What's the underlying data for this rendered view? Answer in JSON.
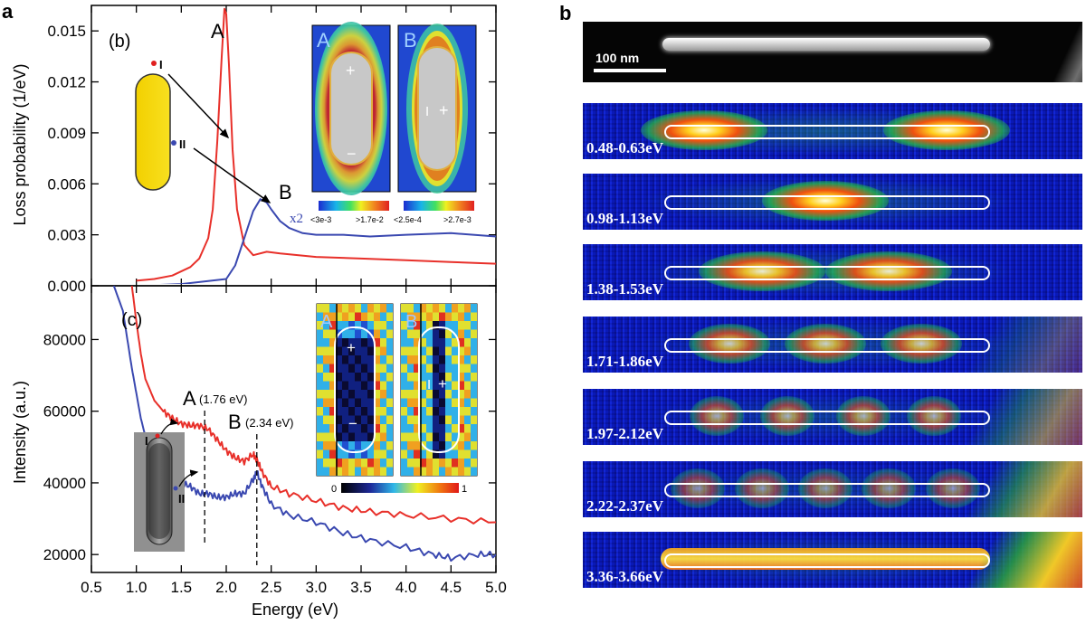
{
  "panel_labels": {
    "a": "a",
    "b": "b"
  },
  "chart_data": [
    {
      "type": "line",
      "subpanel": "(b)",
      "ylabel": "Loss probability (1/eV)",
      "xlim": [
        0.5,
        5.0
      ],
      "ylim": [
        0.0,
        0.0165
      ],
      "yticks": [
        "0.000",
        "0.003",
        "0.006",
        "0.009",
        "0.012",
        "0.015"
      ],
      "ytick_values": [
        0.0,
        0.003,
        0.006,
        0.009,
        0.012,
        0.015
      ],
      "series": [
        {
          "color": "#e8302a",
          "x": [
            1.0,
            1.2,
            1.4,
            1.6,
            1.7,
            1.8,
            1.85,
            1.9,
            1.95,
            1.98,
            2.0,
            2.03,
            2.07,
            2.12,
            2.2,
            2.3,
            2.45,
            2.6,
            3.0,
            3.5,
            4.0,
            4.5,
            5.0
          ],
          "y": [
            0.0003,
            0.0004,
            0.0006,
            0.0011,
            0.0016,
            0.0028,
            0.0045,
            0.0085,
            0.0135,
            0.0163,
            0.016,
            0.013,
            0.008,
            0.0045,
            0.0024,
            0.0018,
            0.002,
            0.0019,
            0.0017,
            0.0016,
            0.0015,
            0.0014,
            0.0013
          ]
        },
        {
          "color": "#3a48b0",
          "x": [
            1.0,
            1.5,
            2.0,
            2.1,
            2.2,
            2.3,
            2.38,
            2.45,
            2.5,
            2.6,
            2.7,
            2.85,
            3.0,
            3.3,
            3.6,
            4.0,
            4.5,
            5.0
          ],
          "y": [
            0.0,
            0.0001,
            0.0004,
            0.0012,
            0.0028,
            0.0044,
            0.0051,
            0.0049,
            0.0045,
            0.0038,
            0.0034,
            0.0031,
            0.003,
            0.003,
            0.0029,
            0.003,
            0.0031,
            0.0029
          ]
        }
      ],
      "annotations": {
        "peak_a": "A",
        "peak_b": "B",
        "scale_factor": "x2",
        "point_1": "I",
        "point_2": "II"
      },
      "inset_maps": {
        "map_a": {
          "label": "A",
          "signs": [
            "+",
            "−"
          ],
          "colorbar_min": "<3e-3",
          "colorbar_max": ">1.7e-2"
        },
        "map_b": {
          "label": "B",
          "signs": [
            "I",
            "+"
          ],
          "colorbar_min": "<2.5e-4",
          "colorbar_max": ">2.7e-3"
        }
      }
    },
    {
      "type": "line",
      "subpanel": "(c)",
      "xlabel": "Energy (eV)",
      "ylabel": "Intensity (a.u.)",
      "xlim": [
        0.5,
        5.0
      ],
      "ylim": [
        15000,
        95000
      ],
      "xticks": [
        "0.5",
        "1.0",
        "1.5",
        "2.0",
        "2.5",
        "3.0",
        "3.5",
        "4.0",
        "4.5",
        "5.0"
      ],
      "xtick_values": [
        0.5,
        1.0,
        1.5,
        2.0,
        2.5,
        3.0,
        3.5,
        4.0,
        4.5,
        5.0
      ],
      "yticks": [
        "20000",
        "40000",
        "60000",
        "80000"
      ],
      "ytick_values": [
        20000,
        40000,
        60000,
        80000
      ],
      "series": [
        {
          "color": "#e8302a",
          "x": [
            0.95,
            1.0,
            1.05,
            1.1,
            1.2,
            1.3,
            1.4,
            1.5,
            1.6,
            1.7,
            1.8,
            1.9,
            2.0,
            2.1,
            2.2,
            2.3,
            2.34,
            2.4,
            2.5,
            2.7,
            3.0,
            3.3,
            3.6,
            4.0,
            4.5,
            5.0
          ],
          "y": [
            95000,
            85000,
            76000,
            69000,
            63000,
            60000,
            58000,
            56500,
            56000,
            56000,
            55000,
            52000,
            49000,
            47000,
            46000,
            48000,
            46500,
            43000,
            39000,
            37000,
            35000,
            33000,
            32000,
            31000,
            30000,
            29000
          ]
        },
        {
          "color": "#3a48b0",
          "x": [
            0.75,
            0.85,
            0.9,
            0.95,
            1.0,
            1.05,
            1.1,
            1.2,
            1.3,
            1.4,
            1.5,
            1.6,
            1.7,
            1.8,
            1.9,
            2.0,
            2.1,
            2.2,
            2.3,
            2.34,
            2.4,
            2.5,
            2.7,
            3.0,
            3.3,
            3.6,
            4.0,
            4.3,
            4.5,
            4.8,
            5.0
          ],
          "y": [
            95000,
            88000,
            80000,
            72000,
            65000,
            58000,
            53000,
            47000,
            44000,
            41000,
            40000,
            39000,
            37000,
            37000,
            36000,
            36000,
            37000,
            37000,
            41000,
            43000,
            39000,
            34000,
            31000,
            29000,
            26000,
            24000,
            22000,
            20000,
            19000,
            20000,
            20000
          ]
        }
      ],
      "annotations": {
        "peak_a": "A",
        "peak_a_energy": "(1.76 eV)",
        "peak_a_x": 1.76,
        "peak_b": "B",
        "peak_b_energy": "(2.34 eV)",
        "peak_b_x": 2.34,
        "point_1": "I",
        "point_2": "II"
      },
      "inset_maps": {
        "map_a": {
          "label": "A",
          "signs": [
            "+",
            "−"
          ]
        },
        "map_b": {
          "label": "B",
          "signs": [
            "I",
            "+"
          ]
        },
        "colorbar_min": "0",
        "colorbar_max": "1"
      }
    }
  ],
  "panel_b": {
    "scale_bar": "100 nm",
    "maps": [
      {
        "label": "0.48-0.63eV",
        "spots": [
          0.12,
          0.88
        ],
        "intensity": 1.0
      },
      {
        "label": "0.98-1.13eV",
        "spots": [
          0.5
        ],
        "intensity": 1.0
      },
      {
        "label": "1.38-1.53eV",
        "spots": [
          0.3,
          0.7
        ],
        "intensity": 0.9
      },
      {
        "label": "1.71-1.86eV",
        "spots": [
          0.2,
          0.5,
          0.8
        ],
        "intensity": 0.75
      },
      {
        "label": "1.97-2.12eV",
        "spots": [
          0.16,
          0.38,
          0.62,
          0.84
        ],
        "intensity": 0.6
      },
      {
        "label": "2.22-2.37eV",
        "spots": [
          0.1,
          0.3,
          0.5,
          0.7,
          0.9
        ],
        "intensity": 0.5
      },
      {
        "label": "3.36-3.66eV",
        "spots": [],
        "intensity": 0.8
      }
    ]
  }
}
